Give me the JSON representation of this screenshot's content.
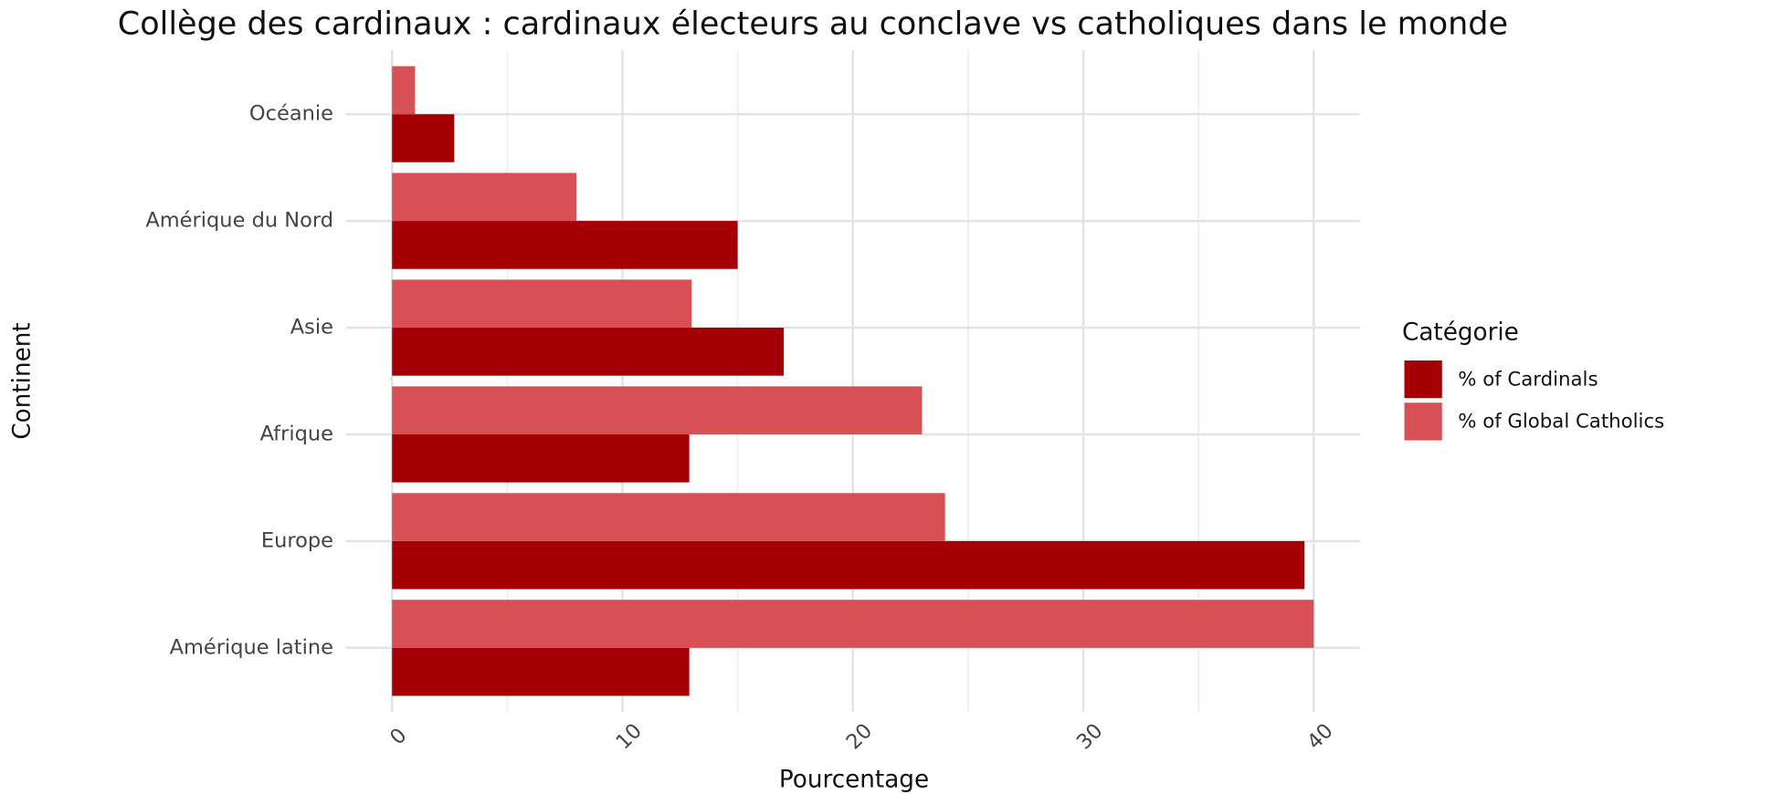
{
  "chart_data": {
    "type": "bar",
    "orientation": "horizontal",
    "title": "Collège des cardinaux : cardinaux électeurs au conclave vs catholiques dans le monde",
    "x_label": "Pourcentage",
    "y_label": "Continent",
    "categories": [
      "Océanie",
      "Amérique du Nord",
      "Asie",
      "Afrique",
      "Europe",
      "Amérique latine"
    ],
    "series": [
      {
        "name": "% of Cardinals",
        "color": "#a50006",
        "values": [
          2.7,
          15.0,
          17.0,
          12.9,
          39.6,
          12.9
        ]
      },
      {
        "name": "% of Global Catholics",
        "color": "#d65055",
        "values": [
          1.0,
          8.0,
          13.0,
          23.0,
          24.0,
          40.0
        ]
      }
    ],
    "xlim": [
      -2,
      42
    ],
    "xticks": [
      0,
      10,
      20,
      30,
      40
    ],
    "x_minor_grid": [
      5,
      15,
      25,
      35
    ],
    "grid": true,
    "legend_title": "Catégorie",
    "legend_position": "right"
  }
}
